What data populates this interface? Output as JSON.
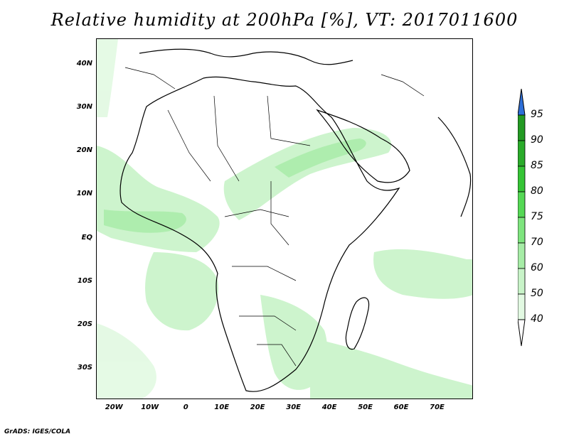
{
  "title": "Relative humidity at 200hPa [%], VT: 2017011600",
  "credit": "GrADS: IGES/COLA",
  "map": {
    "extent_lon": [
      -25,
      80
    ],
    "extent_lat": [
      -37,
      46
    ],
    "lat_labels": [
      "40N",
      "30N",
      "20N",
      "10N",
      "EQ",
      "10S",
      "20S",
      "30S"
    ],
    "lat_values": [
      40,
      30,
      20,
      10,
      0,
      -10,
      -20,
      -30
    ],
    "lon_labels": [
      "20W",
      "10W",
      "0",
      "10E",
      "20E",
      "30E",
      "40E",
      "50E",
      "60E",
      "70E"
    ],
    "lon_values": [
      -20,
      -10,
      0,
      10,
      20,
      30,
      40,
      50,
      60,
      70
    ]
  },
  "colorbar": {
    "levels": [
      "95",
      "90",
      "85",
      "80",
      "75",
      "70",
      "60",
      "50",
      "40"
    ],
    "colors": {
      "above_95": "#2e6fd8",
      "90_95": "#239a23",
      "85_90": "#2aab2a",
      "80_85": "#35c435",
      "75_80": "#55d855",
      "70_75": "#7ee47e",
      "60_70": "#a6eca6",
      "50_60": "#c8f3c8",
      "40_50": "#e2f9e2",
      "below_40": "#ffffff"
    }
  }
}
